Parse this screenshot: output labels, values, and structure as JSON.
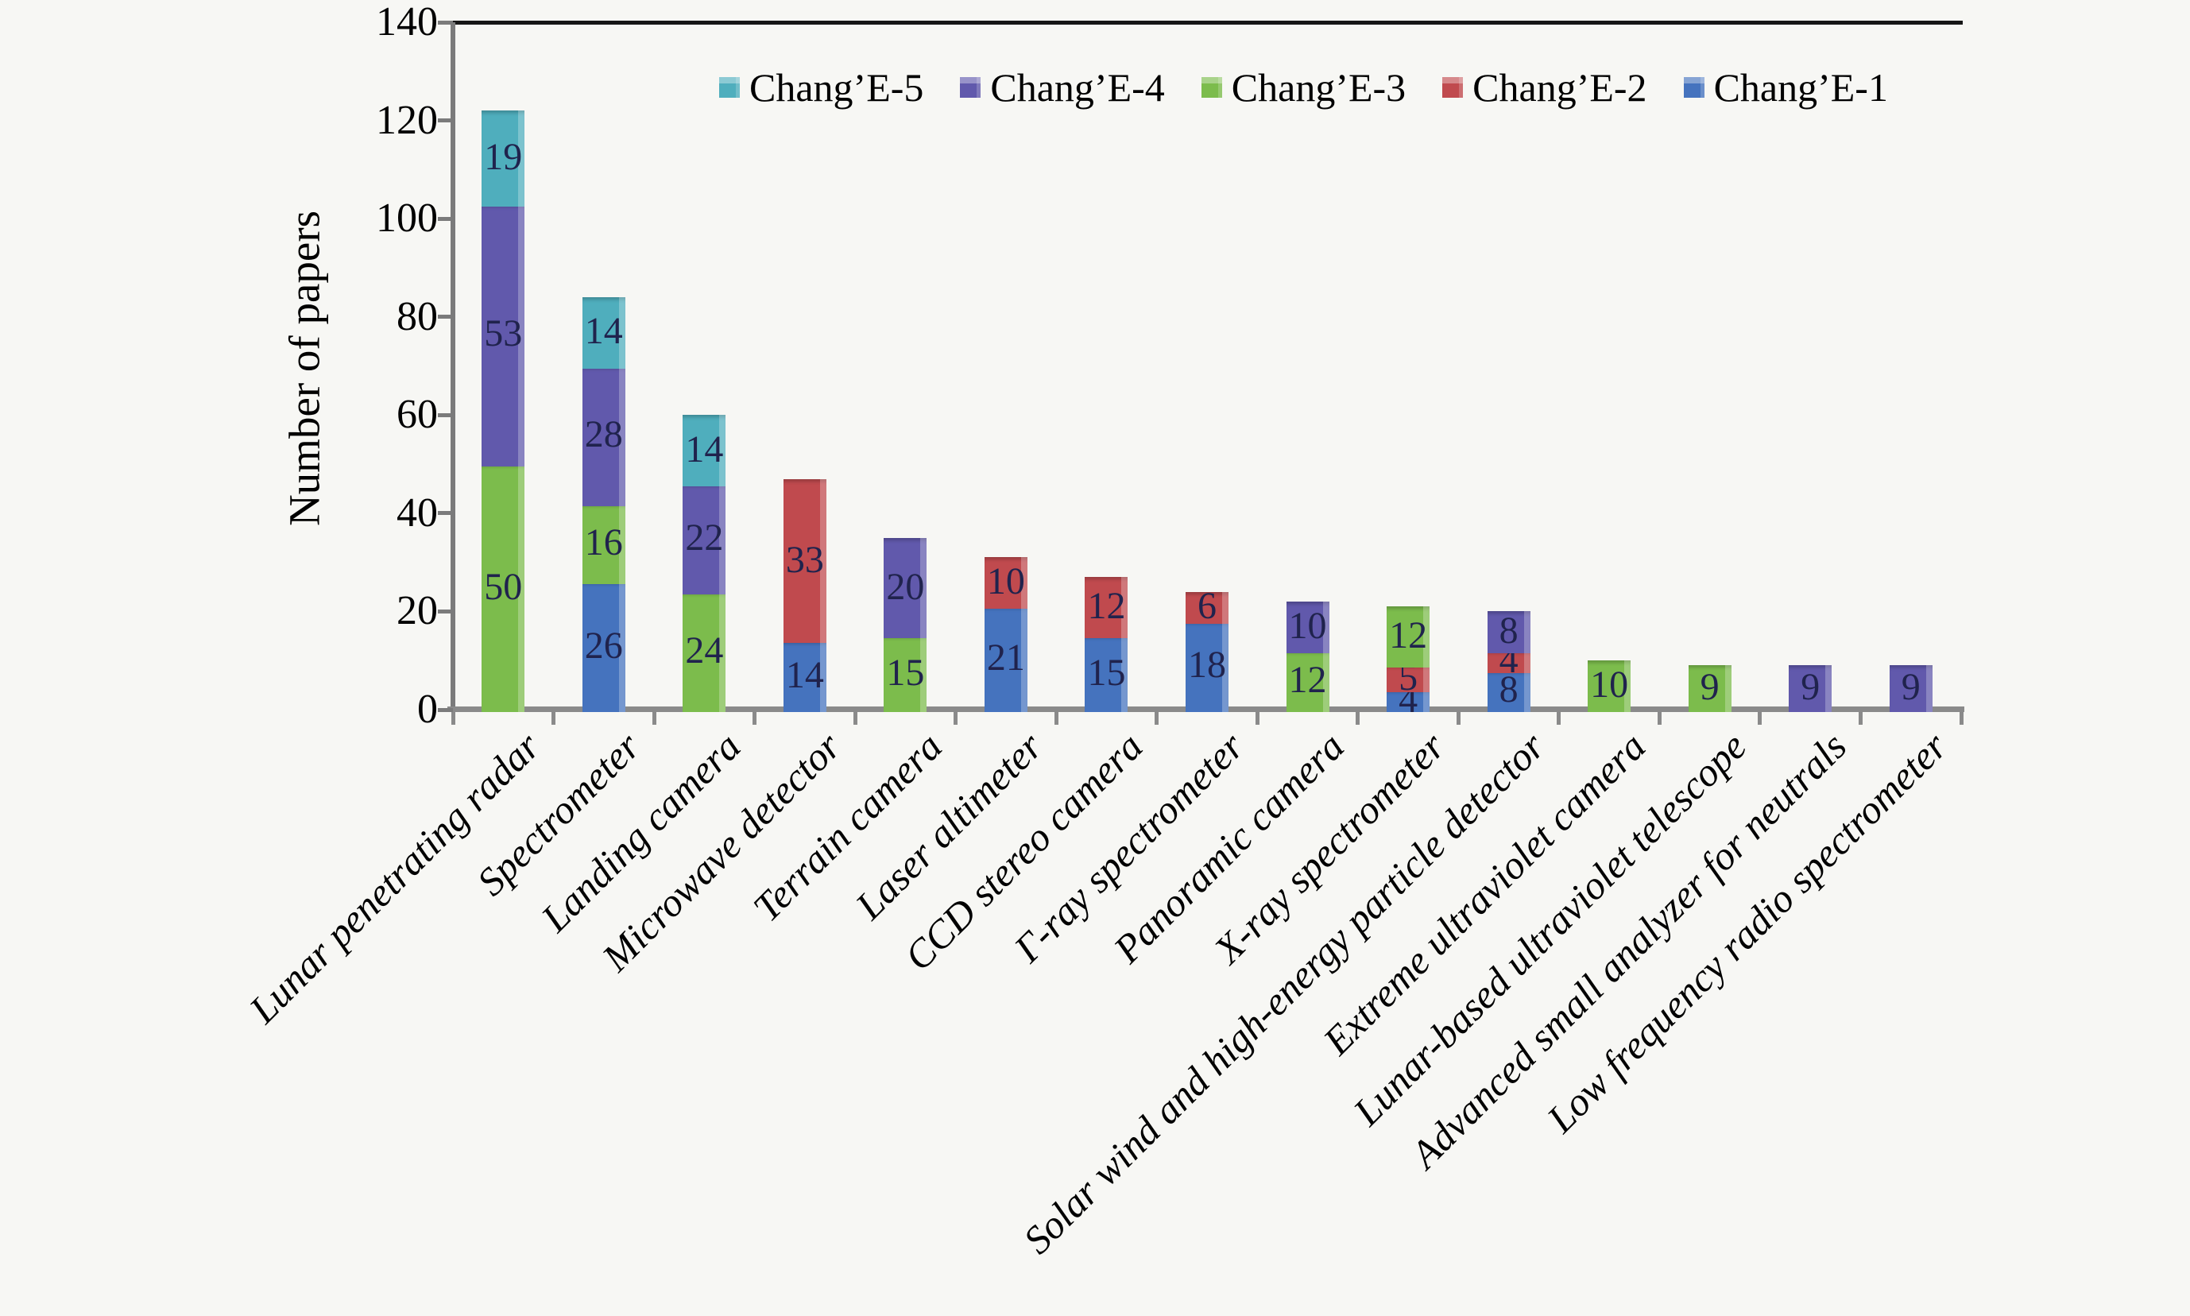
{
  "colors": {
    "background": "#f7f7f4",
    "axis_line": "#7b7b7b",
    "top_border": "#161616",
    "data_label_text": "#20234d",
    "tick_label_text": "#000000"
  },
  "chart_data": {
    "type": "bar",
    "stacked": true,
    "title": "",
    "xlabel": "",
    "ylabel": "Number of papers",
    "ylim": [
      0,
      140
    ],
    "yticks": [
      0,
      20,
      40,
      60,
      80,
      100,
      120,
      140
    ],
    "grid": false,
    "legend_position": "top-center-inside",
    "legend_order": [
      "Chang’E-5",
      "Chang’E-4",
      "Chang’E-3",
      "Chang’E-2",
      "Chang’E-1"
    ],
    "categories": [
      "Lunar penetrating radar",
      "Spectrometer",
      "Landing camera",
      "Microwave detector",
      "Terrain camera",
      "Laser altimeter",
      "CCD stereo camera",
      "Γ-ray spectrometer",
      "Panoramic camera",
      "X-ray spectrometer",
      "Solar wind and high-energy particle detector",
      "Extreme ultraviolet camera",
      "Lunar-based ultraviolet telescope",
      "Advanced small analyzer for neutrals",
      "Low frequency radio spectrometer"
    ],
    "series": [
      {
        "name": "Chang’E-1",
        "color": "#4573BE",
        "values": [
          0,
          26,
          0,
          14,
          0,
          21,
          15,
          18,
          0,
          4,
          8,
          0,
          0,
          0,
          0
        ]
      },
      {
        "name": "Chang’E-2",
        "color": "#C04A4E",
        "values": [
          0,
          0,
          0,
          33,
          0,
          10,
          12,
          6,
          0,
          5,
          4,
          0,
          0,
          0,
          0
        ]
      },
      {
        "name": "Chang’E-3",
        "color": "#7CBC4C",
        "values": [
          50,
          16,
          24,
          0,
          15,
          0,
          0,
          0,
          12,
          12,
          0,
          10,
          9,
          0,
          0
        ]
      },
      {
        "name": "Chang’E-4",
        "color": "#6159AC",
        "values": [
          53,
          28,
          22,
          0,
          20,
          0,
          0,
          0,
          10,
          0,
          8,
          0,
          0,
          9,
          9
        ]
      },
      {
        "name": "Chang’E-5",
        "color": "#4FAEBD",
        "values": [
          19,
          14,
          14,
          0,
          0,
          0,
          0,
          0,
          0,
          0,
          0,
          0,
          0,
          0,
          0
        ]
      }
    ]
  }
}
